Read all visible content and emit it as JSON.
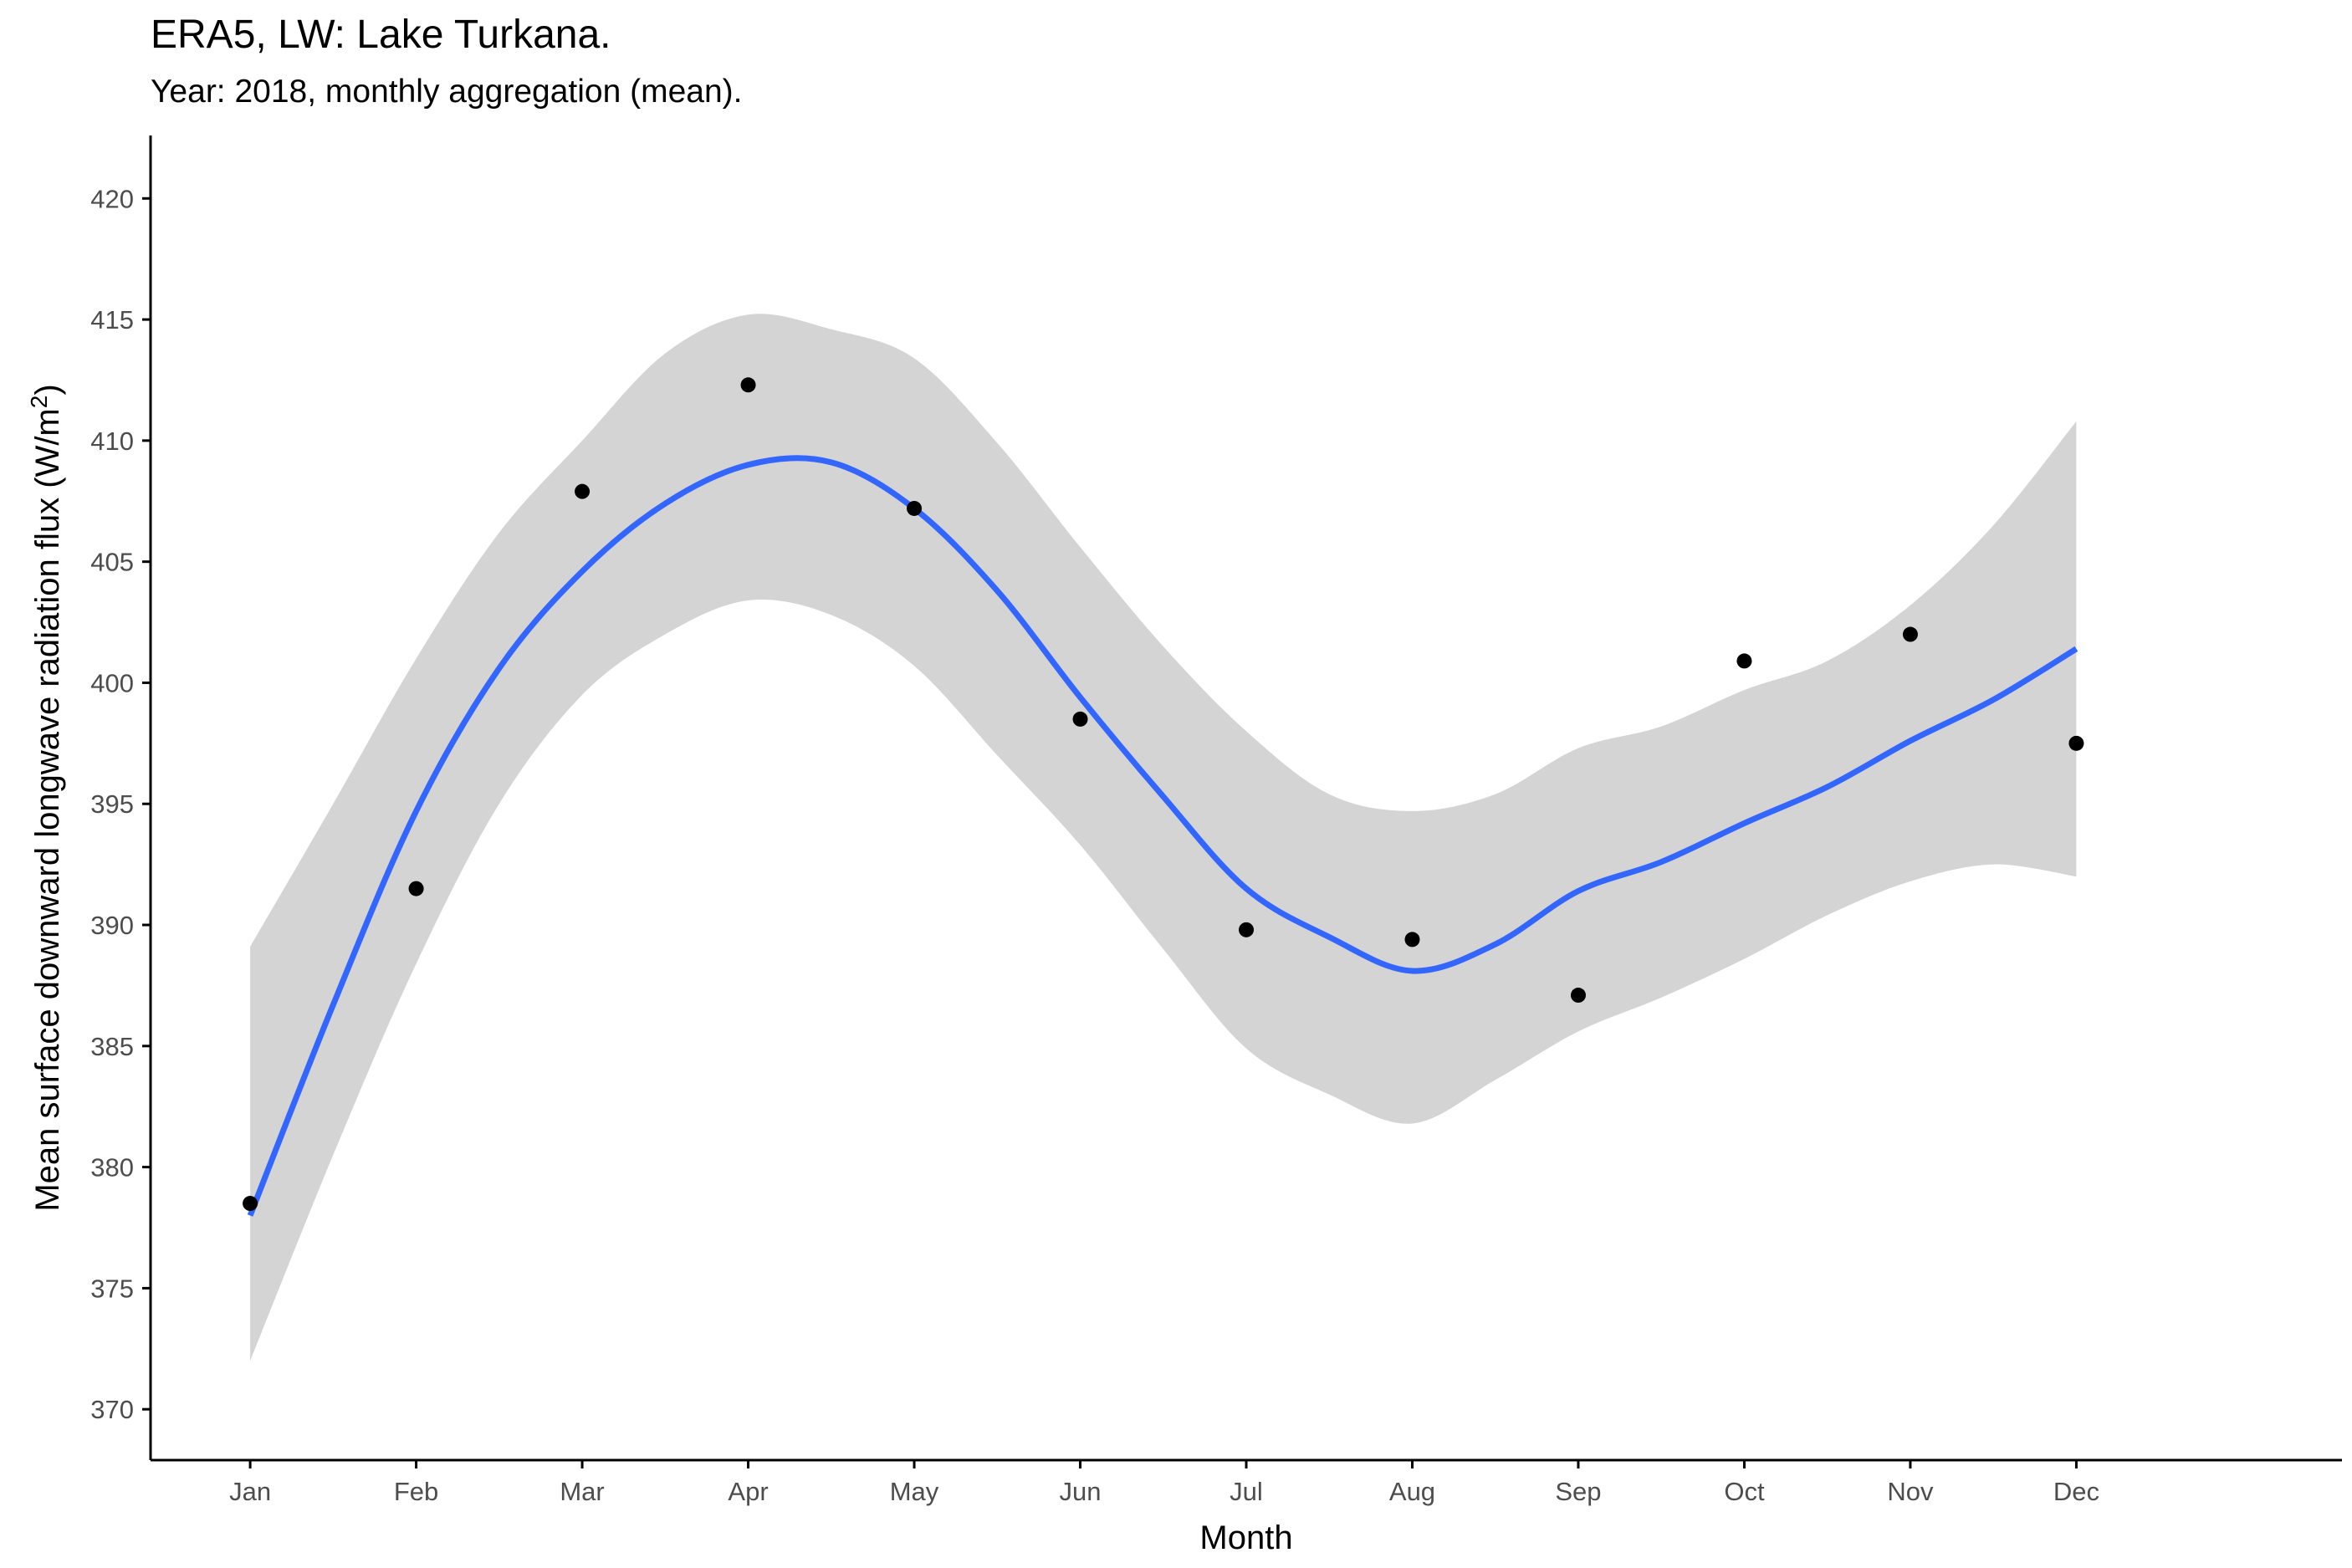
{
  "chart_data": {
    "type": "scatter",
    "title": "ERA5, LW: Lake Turkana.",
    "subtitle": "Year: 2018, monthly aggregation (mean).",
    "xlabel": "Month",
    "ylabel_main": "Mean surface downward longwave radiation flux (W/m",
    "ylabel_sup": "2",
    "ylabel_end": ")",
    "categories": [
      "Jan",
      "Feb",
      "Mar",
      "Apr",
      "May",
      "Jun",
      "Jul",
      "Aug",
      "Sep",
      "Oct",
      "Nov",
      "Dec"
    ],
    "yticks": [
      370,
      375,
      380,
      385,
      390,
      395,
      400,
      405,
      410,
      415,
      420
    ],
    "ylim": [
      367.9,
      422.6
    ],
    "xlim": [
      0.4,
      13.6
    ],
    "grid": false,
    "legend": "none",
    "points": [
      {
        "x": 1,
        "y": 378.5
      },
      {
        "x": 2,
        "y": 391.5
      },
      {
        "x": 3,
        "y": 407.9
      },
      {
        "x": 4,
        "y": 412.3
      },
      {
        "x": 5,
        "y": 407.2
      },
      {
        "x": 6,
        "y": 398.5
      },
      {
        "x": 7,
        "y": 389.8
      },
      {
        "x": 8,
        "y": 389.4
      },
      {
        "x": 9,
        "y": 387.1
      },
      {
        "x": 10,
        "y": 400.9
      },
      {
        "x": 11,
        "y": 402.0
      },
      {
        "x": 12,
        "y": 397.5
      }
    ],
    "smooth": {
      "x": [
        1,
        1.5,
        2,
        2.5,
        3,
        3.5,
        4,
        4.5,
        5,
        5.5,
        6,
        6.5,
        7,
        7.5,
        8,
        8.5,
        9,
        9.5,
        10,
        10.5,
        11,
        11.5,
        12
      ],
      "y": [
        378.0,
        386.7,
        394.7,
        400.6,
        404.6,
        407.4,
        409.0,
        409.1,
        407.2,
        403.8,
        399.4,
        395.3,
        391.5,
        389.5,
        388.1,
        389.2,
        391.4,
        392.6,
        394.2,
        395.7,
        397.6,
        399.3,
        401.4
      ],
      "lower": [
        372.0,
        380.5,
        388.4,
        395.0,
        399.5,
        402.0,
        403.4,
        402.8,
        400.7,
        397.0,
        393.3,
        389.0,
        384.9,
        383.0,
        381.8,
        383.6,
        385.6,
        387.0,
        388.6,
        390.4,
        391.8,
        392.5,
        392.0
      ],
      "upper": [
        389.1,
        395.0,
        401.0,
        406.2,
        410.0,
        413.6,
        415.2,
        414.6,
        413.4,
        409.9,
        405.6,
        401.5,
        398.0,
        395.4,
        394.7,
        395.4,
        397.3,
        398.2,
        399.7,
        400.9,
        403.2,
        406.5,
        410.8
      ]
    },
    "colors": {
      "point": "#000000",
      "line": "#3366FF",
      "ribbon": "#D4D4D4",
      "axis": "#000000",
      "tick_label": "#4d4d4d"
    }
  }
}
